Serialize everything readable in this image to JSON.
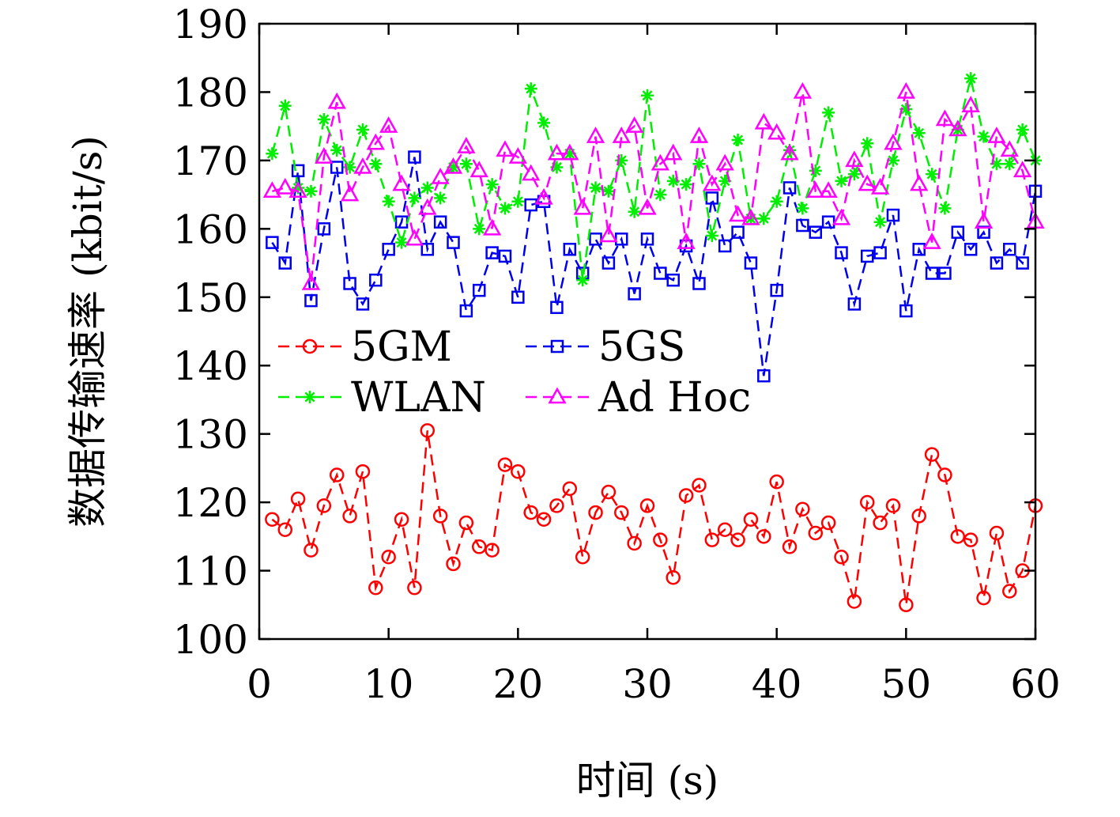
{
  "chart_data": {
    "type": "line",
    "xlabel": "时间 (s)",
    "ylabel": "数据传输速率 (kbit/s)",
    "xlim": [
      0,
      60
    ],
    "ylim": [
      100,
      190
    ],
    "xticks": [
      "0",
      "10",
      "20",
      "30",
      "40",
      "50",
      "60"
    ],
    "yticks": [
      "100",
      "110",
      "120",
      "130",
      "140",
      "150",
      "160",
      "170",
      "180",
      "190"
    ],
    "grid": false,
    "legend_position": "middle-left",
    "x": [
      1,
      2,
      3,
      4,
      5,
      6,
      7,
      8,
      9,
      10,
      11,
      12,
      13,
      14,
      15,
      16,
      17,
      18,
      19,
      20,
      21,
      22,
      23,
      24,
      25,
      26,
      27,
      28,
      29,
      30,
      31,
      32,
      33,
      34,
      35,
      36,
      37,
      38,
      39,
      40,
      41,
      42,
      43,
      44,
      45,
      46,
      47,
      48,
      49,
      50,
      51,
      52,
      53,
      54,
      55,
      56,
      57,
      58,
      59,
      60
    ],
    "series": [
      {
        "name": "5GM",
        "color": "#ff0000",
        "marker": "circle",
        "values": [
          117.5,
          116,
          120.5,
          113,
          119.5,
          124,
          118,
          124.5,
          107.5,
          112,
          117.5,
          107.5,
          130.5,
          118,
          111,
          117,
          113.5,
          113,
          125.5,
          124.5,
          118.5,
          117.5,
          119.5,
          122,
          112,
          118.5,
          121.5,
          118.5,
          114,
          119.5,
          114.5,
          109,
          121,
          122.5,
          114.5,
          116,
          114.5,
          117.5,
          115,
          123,
          113.5,
          119,
          115.5,
          117,
          112,
          105.5,
          120,
          117,
          119.5,
          105,
          118,
          127,
          124,
          115,
          114.5,
          106,
          115.5,
          107,
          110,
          119.5
        ]
      },
      {
        "name": "5GS",
        "color": "#0000ee",
        "marker": "square",
        "values": [
          158,
          155,
          168.5,
          149.5,
          160,
          169,
          152,
          149,
          152.5,
          157,
          161,
          170.5,
          157,
          161,
          158,
          148,
          151,
          156.5,
          156,
          150,
          163.5,
          164,
          148.5,
          157,
          153.5,
          158.5,
          155,
          158.5,
          150.5,
          158.5,
          153.5,
          152.5,
          157.5,
          152,
          164.5,
          157.5,
          159.5,
          155,
          138.5,
          151,
          166,
          160.5,
          159.5,
          161,
          156.5,
          149,
          156,
          156.5,
          162,
          148,
          157,
          153.5,
          153.5,
          159.5,
          157,
          159.5,
          155,
          157,
          155,
          165.5
        ]
      },
      {
        "name": "WLAN",
        "color": "#00ee00",
        "marker": "star",
        "values": [
          171,
          178,
          166,
          165.5,
          176,
          171.5,
          169,
          174.5,
          169.5,
          164,
          158,
          164.5,
          166,
          164.5,
          169,
          169.5,
          160,
          166.5,
          163,
          164,
          180.5,
          175.5,
          169,
          171,
          152.5,
          166,
          165.5,
          170,
          162.5,
          179.5,
          165,
          167,
          166.5,
          169.5,
          159,
          167,
          173,
          161.5,
          161.5,
          164,
          171.5,
          163,
          168.5,
          177,
          167,
          168,
          172.5,
          161,
          170,
          177.5,
          174,
          168,
          163,
          174.5,
          182,
          173.5,
          169.5,
          169.5,
          174.5,
          170
        ]
      },
      {
        "name": "Ad Hoc",
        "color": "#ff00ff",
        "marker": "triangle",
        "values": [
          165.5,
          166,
          165.5,
          152,
          170.5,
          178.5,
          165,
          169,
          172.5,
          175,
          166.5,
          158.5,
          163,
          167.5,
          169,
          172,
          168.5,
          160,
          171.5,
          170.5,
          168,
          164.5,
          171,
          171,
          163,
          173.5,
          159,
          173.5,
          175,
          163,
          169.5,
          171,
          158,
          173.5,
          166.5,
          169.5,
          162,
          161.5,
          175.5,
          174,
          171,
          180,
          165.5,
          165.5,
          161.5,
          170,
          166.5,
          166,
          172.5,
          180,
          166.5,
          158,
          176,
          174.5,
          178,
          161,
          173.5,
          171.5,
          168.5,
          161
        ]
      }
    ]
  }
}
